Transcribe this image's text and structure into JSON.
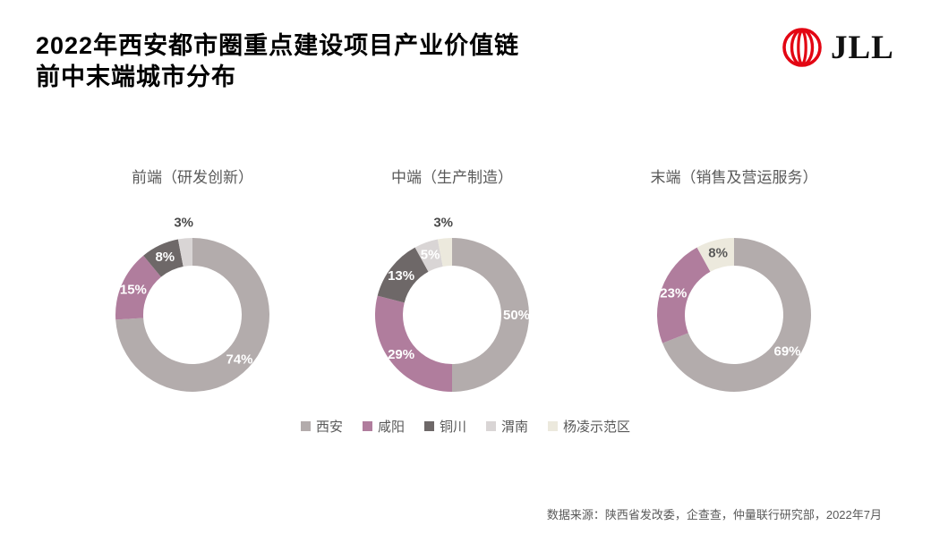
{
  "header": {
    "title_line1": "2022年西安都市圈重点建设项目产业价值链",
    "title_line2": "前中末端城市分布",
    "logo_text": "JLL",
    "logo_color": "#e30613"
  },
  "legend": {
    "position": "bottom-center",
    "items": [
      {
        "label": "西安",
        "color": "#b3acac"
      },
      {
        "label": "咸阳",
        "color": "#b07d9d"
      },
      {
        "label": "铜川",
        "color": "#6e6868"
      },
      {
        "label": "渭南",
        "color": "#d9d5d5"
      },
      {
        "label": "杨凌示范区",
        "color": "#ece9dd"
      }
    ]
  },
  "chart_data": [
    {
      "type": "pie",
      "subtype": "donut",
      "title": "前端（研发创新）",
      "categories": [
        "西安",
        "咸阳",
        "铜川",
        "渭南"
      ],
      "values": [
        74,
        15,
        8,
        3
      ],
      "labels": [
        "74%",
        "15%",
        "8%",
        "3%"
      ],
      "label_styles": [
        {
          "inside": true,
          "color": "#ffffff"
        },
        {
          "inside": true,
          "color": "#ffffff"
        },
        {
          "inside": true,
          "color": "#ffffff"
        },
        {
          "inside": false,
          "color": "#4a4a4a"
        }
      ]
    },
    {
      "type": "pie",
      "subtype": "donut",
      "title": "中端（生产制造）",
      "categories": [
        "西安",
        "咸阳",
        "铜川",
        "渭南",
        "杨凌示范区"
      ],
      "values": [
        50,
        29,
        13,
        5,
        3
      ],
      "labels": [
        "50%",
        "29%",
        "13%",
        "5%",
        "3%"
      ],
      "label_styles": [
        {
          "inside": true,
          "color": "#ffffff"
        },
        {
          "inside": true,
          "color": "#ffffff"
        },
        {
          "inside": true,
          "color": "#ffffff"
        },
        {
          "inside": true,
          "color": "#ffffff"
        },
        {
          "inside": false,
          "color": "#4a4a4a"
        }
      ]
    },
    {
      "type": "pie",
      "subtype": "donut",
      "title": "末端（销售及营运服务）",
      "categories": [
        "西安",
        "咸阳",
        "杨凌示范区"
      ],
      "values": [
        69,
        23,
        8
      ],
      "labels": [
        "69%",
        "23%",
        "8%"
      ],
      "label_styles": [
        {
          "inside": true,
          "color": "#ffffff"
        },
        {
          "inside": true,
          "color": "#ffffff"
        },
        {
          "inside": true,
          "color": "#595959"
        }
      ]
    }
  ],
  "footer": {
    "source": "数据来源：陕西省发改委，企查查，仲量联行研究部，2022年7月"
  }
}
